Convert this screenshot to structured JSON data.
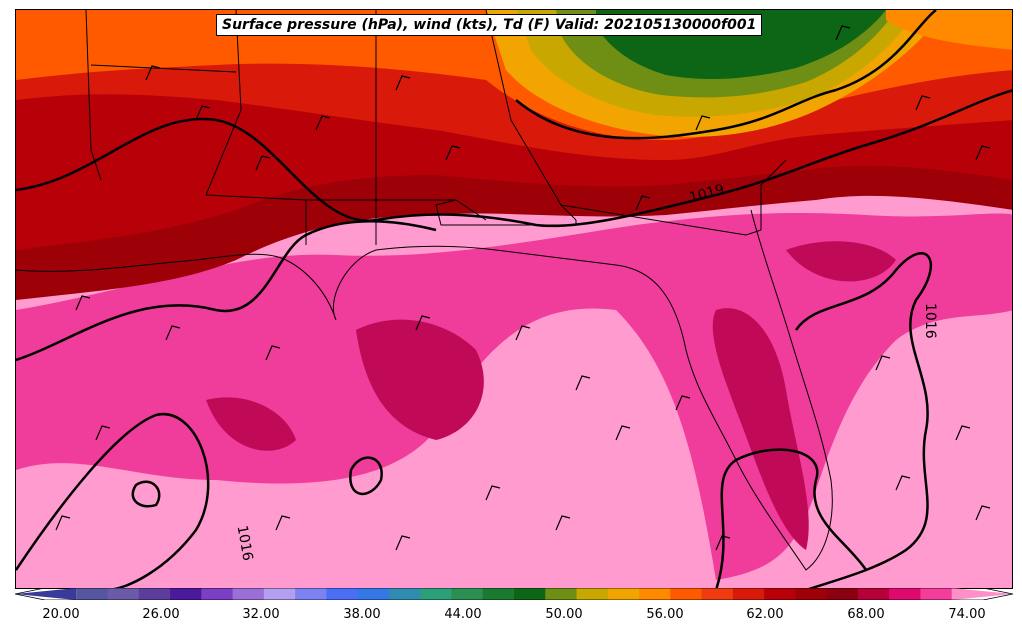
{
  "title": "Surface pressure (hPa), wind (kts), Td (F) Valid: 202105130000f001",
  "isobars": {
    "labels": [
      "1019",
      "1016",
      "1016"
    ]
  },
  "colorbar": {
    "ticks": [
      "20.00",
      "26.00",
      "32.00",
      "38.00",
      "44.00",
      "50.00",
      "56.00",
      "62.00",
      "68.00",
      "74.00"
    ],
    "colors": [
      "#3a3a9a",
      "#55569f",
      "#6a5aa8",
      "#5c3d9c",
      "#4b1a9c",
      "#7a3fc2",
      "#9a70d8",
      "#b39ef0",
      "#7d82f2",
      "#4a6ef5",
      "#3478e6",
      "#2f8cb0",
      "#2b9e7a",
      "#2a8f52",
      "#1a7a30",
      "#0d6615",
      "#6e8f14",
      "#c8a800",
      "#f2a400",
      "#ff8a00",
      "#ff5a00",
      "#f03a10",
      "#d91a0a",
      "#b80008",
      "#9e0008",
      "#8a0010",
      "#b50038",
      "#de0a6e",
      "#f23d9a",
      "#ff8fc8"
    ],
    "domain": [
      17.0,
      77.0
    ],
    "variable": "Td (F)"
  }
}
